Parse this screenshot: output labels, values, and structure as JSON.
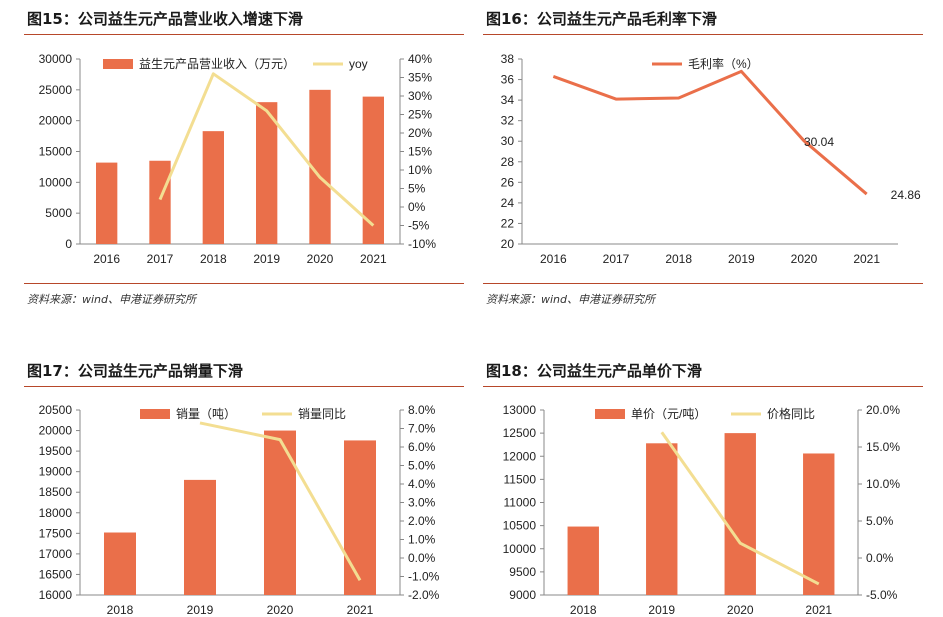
{
  "colors": {
    "bar": "#ea6f4a",
    "yoy": "#f3de92",
    "margin_line": "#ea6f4a",
    "rule": "#b7472a"
  },
  "fig15": {
    "title": "图15：公司益生元产品营业收入增速下滑",
    "source": "资料来源：wind、申港证券研究所"
  },
  "fig16": {
    "title": "图16：公司益生元产品毛利率下滑",
    "source": "资料来源：wind、申港证券研究所"
  },
  "fig17": {
    "title": "图17：公司益生元产品销量下滑"
  },
  "fig18": {
    "title": "图18：公司益生元产品单价下滑"
  },
  "chart_data": [
    {
      "type": "bar",
      "title": "图15：公司益生元产品营业收入增速下滑",
      "categories": [
        "2016",
        "2017",
        "2018",
        "2019",
        "2020",
        "2021"
      ],
      "series": [
        {
          "name": "益生元产品营业收入（万元）",
          "type": "bar",
          "axis": "left",
          "values": [
            13200,
            13500,
            18300,
            23000,
            25000,
            23900
          ]
        },
        {
          "name": "yoy",
          "type": "line",
          "axis": "right",
          "values": [
            null,
            0.02,
            0.36,
            0.26,
            0.08,
            -0.05
          ]
        }
      ],
      "ylim": [
        0,
        30000
      ],
      "yticks": [
        "0",
        "5000",
        "10000",
        "15000",
        "20000",
        "25000",
        "30000"
      ],
      "y2lim": [
        -0.1,
        0.4
      ],
      "y2ticks": [
        "-10%",
        "-5%",
        "0%",
        "5%",
        "10%",
        "15%",
        "20%",
        "25%",
        "30%",
        "35%",
        "40%"
      ],
      "legend": "top"
    },
    {
      "type": "line",
      "title": "图16：公司益生元产品毛利率下滑",
      "categories": [
        "2016",
        "2017",
        "2018",
        "2019",
        "2020",
        "2021"
      ],
      "series": [
        {
          "name": "毛利率（%）",
          "values": [
            36.3,
            34.1,
            34.2,
            36.8,
            30.04,
            24.86
          ],
          "labels": [
            "",
            "",
            "",
            "",
            "30.04",
            "24.86"
          ]
        }
      ],
      "ylim": [
        20,
        38
      ],
      "yticks": [
        "20",
        "22",
        "24",
        "26",
        "28",
        "30",
        "32",
        "34",
        "36",
        "38"
      ],
      "legend": "top"
    },
    {
      "type": "bar",
      "title": "图17：公司益生元产品销量下滑",
      "categories": [
        "2018",
        "2019",
        "2020",
        "2021"
      ],
      "series": [
        {
          "name": "销量（吨）",
          "type": "bar",
          "axis": "left",
          "values": [
            17520,
            18800,
            20000,
            19760
          ]
        },
        {
          "name": "销量同比",
          "type": "line",
          "axis": "right",
          "values": [
            null,
            0.073,
            0.064,
            -0.012
          ]
        }
      ],
      "ylim": [
        16000,
        20500
      ],
      "yticks": [
        "16000",
        "16500",
        "17000",
        "17500",
        "18000",
        "18500",
        "19000",
        "19500",
        "20000",
        "20500"
      ],
      "y2lim": [
        -0.02,
        0.08
      ],
      "y2ticks": [
        "-2.0%",
        "-1.0%",
        "0.0%",
        "1.0%",
        "2.0%",
        "3.0%",
        "4.0%",
        "5.0%",
        "6.0%",
        "7.0%",
        "8.0%"
      ],
      "legend": "top"
    },
    {
      "type": "bar",
      "title": "图18：公司益生元产品单价下滑",
      "categories": [
        "2018",
        "2019",
        "2020",
        "2021"
      ],
      "series": [
        {
          "name": "单价（元/吨）",
          "type": "bar",
          "axis": "left",
          "values": [
            10480,
            12280,
            12500,
            12060
          ]
        },
        {
          "name": "价格同比",
          "type": "line",
          "axis": "right",
          "values": [
            null,
            0.17,
            0.02,
            -0.035
          ]
        }
      ],
      "ylim": [
        9000,
        13000
      ],
      "yticks": [
        "9000",
        "9500",
        "10000",
        "10500",
        "11000",
        "11500",
        "12000",
        "12500",
        "13000"
      ],
      "y2lim": [
        -0.05,
        0.2
      ],
      "y2ticks": [
        "-5.0%",
        "0.0%",
        "5.0%",
        "10.0%",
        "15.0%",
        "20.0%"
      ],
      "legend": "top"
    }
  ]
}
